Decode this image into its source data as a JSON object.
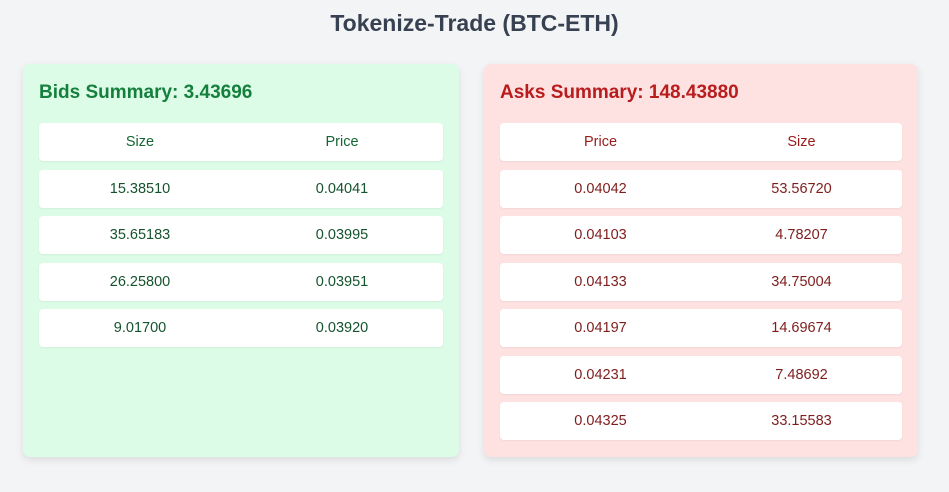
{
  "page": {
    "title": "Tokenize-Trade (BTC-ETH)"
  },
  "bids": {
    "summary_label": "Bids Summary:",
    "summary_value": "3.43696",
    "headers": [
      "Size",
      "Price"
    ],
    "rows": [
      {
        "size": "15.38510",
        "price": "0.04041"
      },
      {
        "size": "35.65183",
        "price": "0.03995"
      },
      {
        "size": "26.25800",
        "price": "0.03951"
      },
      {
        "size": "9.01700",
        "price": "0.03920"
      }
    ]
  },
  "asks": {
    "summary_label": "Asks Summary:",
    "summary_value": "148.43880",
    "headers": [
      "Price",
      "Size"
    ],
    "rows": [
      {
        "price": "0.04042",
        "size": "53.56720"
      },
      {
        "price": "0.04103",
        "size": "4.78207"
      },
      {
        "price": "0.04133",
        "size": "34.75004"
      },
      {
        "price": "0.04197",
        "size": "14.69674"
      },
      {
        "price": "0.04231",
        "size": "7.48692"
      },
      {
        "price": "0.04325",
        "size": "33.15583"
      }
    ]
  },
  "colors": {
    "bids_panel_bg": "#dcfce7",
    "bids_accent": "#15803d",
    "asks_panel_bg": "#fee2e2",
    "asks_accent": "#b91c1c"
  }
}
